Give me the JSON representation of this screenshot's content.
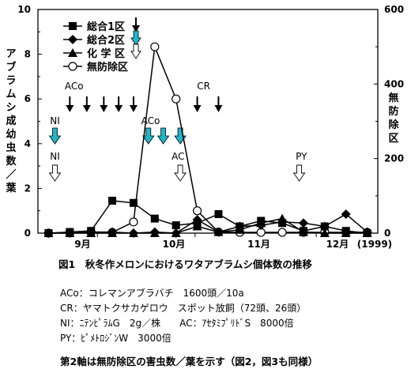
{
  "chart_data": {
    "type": "line",
    "caption": "図1　秋冬作メロンにおけるワタアブラムシ個体数の推移",
    "y1_label": "アブラムシ成幼虫数／葉",
    "y2_label": "無防除区",
    "y1_lim": [
      0,
      10
    ],
    "y1_ticks": [
      "0",
      "2",
      "4",
      "6",
      "8",
      "10"
    ],
    "y2_lim": [
      0,
      600
    ],
    "y2_ticks": [
      "0",
      "200",
      "400",
      "600"
    ],
    "x_month_labels": [
      "9月",
      "10月",
      "11月",
      "12月"
    ],
    "year_label": "(1999)",
    "legend_position": "top-left",
    "series": [
      {
        "name": "総合1区",
        "marker": "square",
        "axis": "left",
        "x": [
          1,
          2,
          3,
          4,
          5,
          6,
          7,
          8,
          9,
          10,
          11,
          12,
          13,
          14,
          15,
          16
        ],
        "y": [
          0.0,
          0.05,
          0.1,
          1.45,
          1.35,
          0.65,
          0.35,
          0.45,
          0.85,
          0.3,
          0.55,
          0.45,
          0.1,
          0.3,
          0.1,
          0.0
        ]
      },
      {
        "name": "総合2区",
        "marker": "diamond",
        "axis": "left",
        "x": [
          1,
          2,
          3,
          4,
          5,
          6,
          7,
          8,
          9,
          10,
          11,
          12,
          13,
          14,
          15,
          16
        ],
        "y": [
          0.0,
          0.0,
          0.05,
          0.05,
          0.0,
          0.05,
          0.0,
          0.6,
          0.05,
          0.3,
          0.35,
          0.5,
          0.45,
          0.3,
          0.85,
          0.05
        ]
      },
      {
        "name": "化 学 区",
        "marker": "triangle",
        "axis": "left",
        "x": [
          1,
          2,
          3,
          4,
          5,
          6,
          7,
          8,
          9,
          10,
          11,
          12,
          13,
          14,
          15,
          16
        ],
        "y": [
          0.0,
          0.0,
          0.0,
          0.0,
          0.0,
          0.0,
          0.0,
          0.3,
          0.05,
          0.15,
          0.45,
          0.65,
          0.05,
          0.0,
          0.0,
          0.0
        ]
      },
      {
        "name": "無防除区",
        "marker": "circle-open",
        "axis": "right",
        "x": [
          1,
          2,
          3,
          4,
          5,
          6,
          7,
          8,
          9,
          10,
          11,
          12,
          13,
          14,
          15,
          16
        ],
        "y": [
          0,
          2,
          3,
          2,
          30,
          500,
          360,
          60,
          3,
          2,
          2,
          2,
          2,
          2,
          2,
          2
        ]
      }
    ],
    "annotations": [
      {
        "text": "ACo",
        "x": 2.2,
        "row": "upper"
      },
      {
        "text": "CR",
        "x": 8.3,
        "row": "upper"
      },
      {
        "text": "ACo",
        "x": 5.8,
        "row": "middle"
      },
      {
        "text": "AC",
        "x": 7.1,
        "row": "lower"
      },
      {
        "text": "NI",
        "x": 1.3,
        "row": "middle"
      },
      {
        "text": "NI",
        "x": 1.3,
        "row": "lower"
      },
      {
        "text": "PY",
        "x": 12.9,
        "row": "lower"
      }
    ],
    "arrows": [
      {
        "kind": "black",
        "x": [
          2.0,
          2.8,
          3.6,
          4.3,
          5.0,
          8.0,
          9.0
        ]
      },
      {
        "kind": "cyan",
        "x": [
          1.3,
          5.7,
          6.4,
          7.2
        ]
      },
      {
        "kind": "open",
        "x": [
          1.3,
          7.2,
          12.8
        ]
      }
    ],
    "legend_arrows": [
      "black",
      "cyan",
      "open"
    ]
  },
  "notes": [
    "ACo：コレマンアブラバチ　1600頭／10a",
    "CR：ヤマトクサカゲロウ　スポット放飼（72頭、26頭）",
    "NI：ﾆﾃﾝﾋﾟﾗﾑG　2g／株　　AC：ｱｾﾀﾐﾌﾟﾘﾄﾞS　8000倍",
    "PY：ﾋﾟﾒﾄﾛｼﾞﾝW　3000倍"
  ],
  "footer": "第2軸は無防除区の害虫数／葉を示す（図2，図3も同様）"
}
